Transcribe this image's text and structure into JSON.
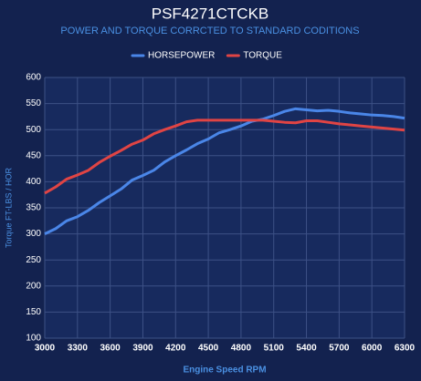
{
  "chart_data": {
    "type": "line",
    "title": "PSF4271CTCKB",
    "subtitle": "POWER AND TORQUE CORRCTED TO STANDARD CODITIONS",
    "x_label": "Engine Speed RPM",
    "y_label": "Torque FT-LBS / HOR",
    "x": [
      3000,
      3100,
      3200,
      3300,
      3400,
      3500,
      3600,
      3700,
      3800,
      3900,
      4000,
      4100,
      4200,
      4300,
      4400,
      4500,
      4600,
      4700,
      4800,
      4900,
      5000,
      5100,
      5200,
      5300,
      5400,
      5500,
      5600,
      5700,
      5800,
      5900,
      6000,
      6100,
      6200,
      6300
    ],
    "series": [
      {
        "name": "HORSEPOWER",
        "color": "#4a86e8",
        "values": [
          300,
          310,
          325,
          333,
          345,
          360,
          373,
          386,
          403,
          412,
          422,
          438,
          450,
          461,
          473,
          482,
          494,
          500,
          507,
          516,
          520,
          527,
          535,
          540,
          538,
          536,
          537,
          535,
          532,
          530,
          528,
          527,
          525,
          522
        ]
      },
      {
        "name": "TORQUE",
        "color": "#e04444",
        "values": [
          378,
          390,
          405,
          413,
          422,
          437,
          449,
          460,
          472,
          480,
          492,
          500,
          507,
          515,
          518,
          518,
          518,
          518,
          518,
          518,
          518,
          516,
          514,
          513,
          517,
          517,
          514,
          511,
          509,
          507,
          505,
          503,
          501,
          499
        ]
      }
    ],
    "xlim": [
      3000,
      6300
    ],
    "xticks": [
      3000,
      3300,
      3600,
      3900,
      4200,
      4500,
      4800,
      5100,
      5400,
      5700,
      6000,
      6300
    ],
    "ylim": [
      100,
      600
    ],
    "yticks": [
      100,
      150,
      200,
      250,
      300,
      350,
      400,
      450,
      500,
      550,
      600
    ],
    "grid": true,
    "legend": "top"
  }
}
